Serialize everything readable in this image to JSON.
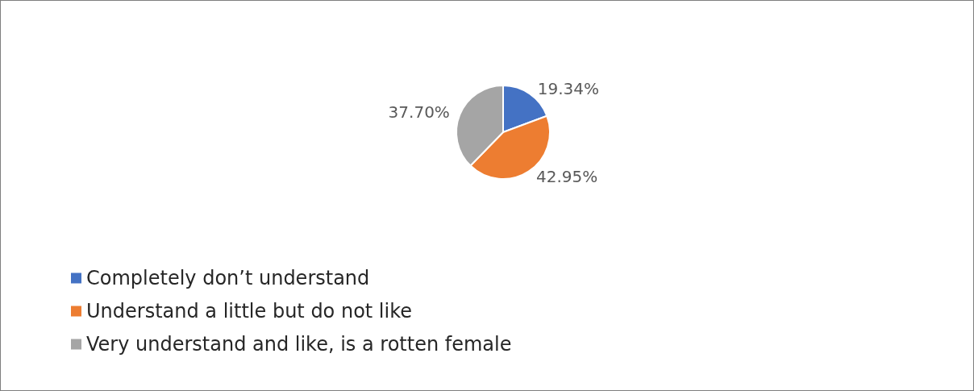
{
  "chart_data": {
    "type": "pie",
    "categories": [
      "Completely don’t understand",
      "Understand a little but do not like",
      "Very understand and like, is a rotten female"
    ],
    "values": [
      19.34,
      42.95,
      37.7
    ],
    "value_labels": [
      "19.34%",
      "42.95%",
      "37.70%"
    ],
    "colors": [
      "#4472c4",
      "#ed7d31",
      "#a5a5a5"
    ],
    "legend": "bottom left"
  }
}
